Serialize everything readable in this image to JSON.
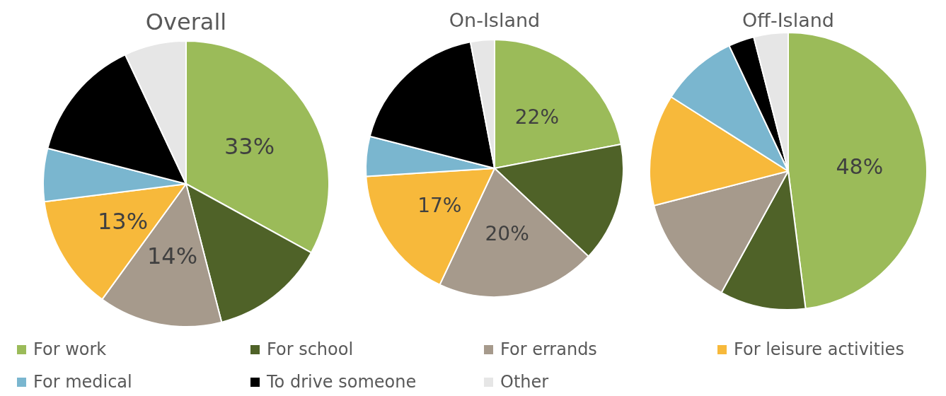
{
  "chart_data": [
    {
      "type": "pie",
      "title": "Overall",
      "categories": [
        "For work",
        "For school",
        "For errands",
        "For leisure activities",
        "For medical",
        "To drive someone",
        "Other"
      ],
      "values": [
        33,
        13,
        14,
        13,
        6,
        14,
        7
      ],
      "value_labels": [
        "33%",
        null,
        "14%",
        "13%",
        null,
        null,
        null
      ],
      "colors": [
        "#9bbb59",
        "#4f6228",
        "#a69a8c",
        "#f7b93b",
        "#7ab6cf",
        "#000000",
        "#e6e6e6"
      ],
      "legend": "bottom"
    },
    {
      "type": "pie",
      "title": "On-Island",
      "categories": [
        null,
        null,
        null,
        null,
        null,
        null,
        null
      ],
      "values": [
        22,
        15,
        20,
        17,
        5,
        18,
        3
      ],
      "value_labels": [
        "22%",
        null,
        "20%",
        "17%",
        null,
        null,
        null
      ],
      "colors": [
        "#9bbb59",
        "#4f6228",
        "#a69a8c",
        "#f7b93b",
        "#7ab6cf",
        "#000000",
        "#e6e6e6"
      ]
    },
    {
      "type": "pie",
      "title": "Off-Island",
      "categories": [
        null,
        null,
        null,
        null,
        null,
        null,
        null
      ],
      "values": [
        48,
        10,
        13,
        13,
        9,
        3,
        4
      ],
      "value_labels": [
        "48%",
        null,
        null,
        null,
        null,
        null,
        null
      ],
      "colors": [
        "#9bbb59",
        "#4f6228",
        "#a69a8c",
        "#f7b93b",
        "#7ab6cf",
        "#000000",
        "#e6e6e6"
      ]
    }
  ]
}
